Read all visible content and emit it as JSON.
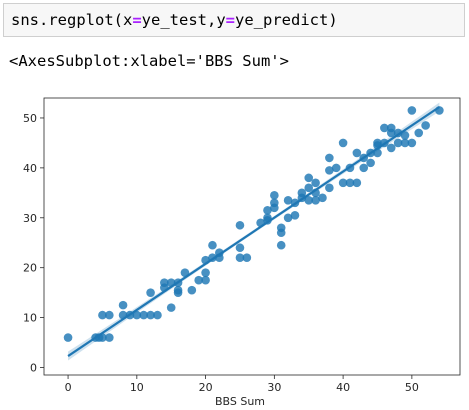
{
  "cell": {
    "code_parts": [
      "sns.regplot(x",
      "=",
      "ye_test,y",
      "=",
      "ye_predict)"
    ]
  },
  "output": {
    "repr": "<AxesSubplot:xlabel='BBS Sum'>"
  },
  "chart_data": {
    "type": "scatter",
    "xlabel": "BBS Sum",
    "ylabel": "",
    "xlim": [
      -3.5,
      57
    ],
    "ylim": [
      -1.5,
      54
    ],
    "xticks": [
      0,
      10,
      20,
      30,
      40,
      50
    ],
    "yticks": [
      0,
      10,
      20,
      30,
      40,
      50
    ],
    "grid": false,
    "colors": {
      "points": "#1f77b4",
      "line": "#1f77b4",
      "band": "#a6c8e0"
    },
    "points": [
      [
        0,
        6
      ],
      [
        4,
        6
      ],
      [
        4.5,
        6
      ],
      [
        5,
        6
      ],
      [
        6,
        6
      ],
      [
        5,
        10.5
      ],
      [
        6,
        10.5
      ],
      [
        8,
        10.5
      ],
      [
        8,
        12.5
      ],
      [
        9,
        10.5
      ],
      [
        10,
        10.5
      ],
      [
        11,
        10.5
      ],
      [
        12,
        10.5
      ],
      [
        12,
        15
      ],
      [
        13,
        10.5
      ],
      [
        14,
        17
      ],
      [
        14,
        16
      ],
      [
        15,
        12
      ],
      [
        15,
        17
      ],
      [
        16,
        17
      ],
      [
        16,
        15
      ],
      [
        16,
        15.5
      ],
      [
        17,
        19
      ],
      [
        18,
        15.5
      ],
      [
        19,
        17.5
      ],
      [
        20,
        17.5
      ],
      [
        20,
        19
      ],
      [
        20,
        21.5
      ],
      [
        21,
        22
      ],
      [
        21,
        24.5
      ],
      [
        22,
        22
      ],
      [
        22,
        23
      ],
      [
        25,
        24
      ],
      [
        25,
        28.5
      ],
      [
        25,
        22
      ],
      [
        26,
        22
      ],
      [
        28,
        29
      ],
      [
        29,
        29.5
      ],
      [
        29,
        30
      ],
      [
        29,
        31.5
      ],
      [
        30,
        34.5
      ],
      [
        30,
        32
      ],
      [
        30,
        33
      ],
      [
        31,
        24.5
      ],
      [
        31,
        27
      ],
      [
        31,
        28
      ],
      [
        32,
        30
      ],
      [
        32,
        33.5
      ],
      [
        33,
        30.5
      ],
      [
        33,
        33
      ],
      [
        34,
        34
      ],
      [
        34,
        35
      ],
      [
        35,
        36
      ],
      [
        35,
        38
      ],
      [
        35,
        33.5
      ],
      [
        36,
        33.5
      ],
      [
        36,
        35
      ],
      [
        36,
        37
      ],
      [
        37,
        34
      ],
      [
        38,
        42
      ],
      [
        38,
        36
      ],
      [
        38,
        39.5
      ],
      [
        39,
        40
      ],
      [
        40,
        37
      ],
      [
        40,
        45
      ],
      [
        41,
        37
      ],
      [
        41,
        40
      ],
      [
        42,
        37
      ],
      [
        42,
        43
      ],
      [
        43,
        42
      ],
      [
        43,
        40
      ],
      [
        44,
        41
      ],
      [
        44,
        43
      ],
      [
        45,
        45
      ],
      [
        45,
        43
      ],
      [
        45,
        44.5
      ],
      [
        46,
        48
      ],
      [
        46,
        45
      ],
      [
        47,
        47
      ],
      [
        47,
        48
      ],
      [
        47,
        44
      ],
      [
        48,
        45
      ],
      [
        48,
        47
      ],
      [
        49,
        45
      ],
      [
        49,
        46.5
      ],
      [
        50,
        45
      ],
      [
        50,
        51.5
      ],
      [
        51,
        47
      ],
      [
        52,
        48.5
      ],
      [
        54,
        51.5
      ]
    ],
    "regression": {
      "x": [
        0,
        54
      ],
      "y": [
        2.3,
        52.2
      ]
    },
    "ci_band_halfwidth": {
      "at_ends": 0.9,
      "at_center": 0.35
    }
  }
}
